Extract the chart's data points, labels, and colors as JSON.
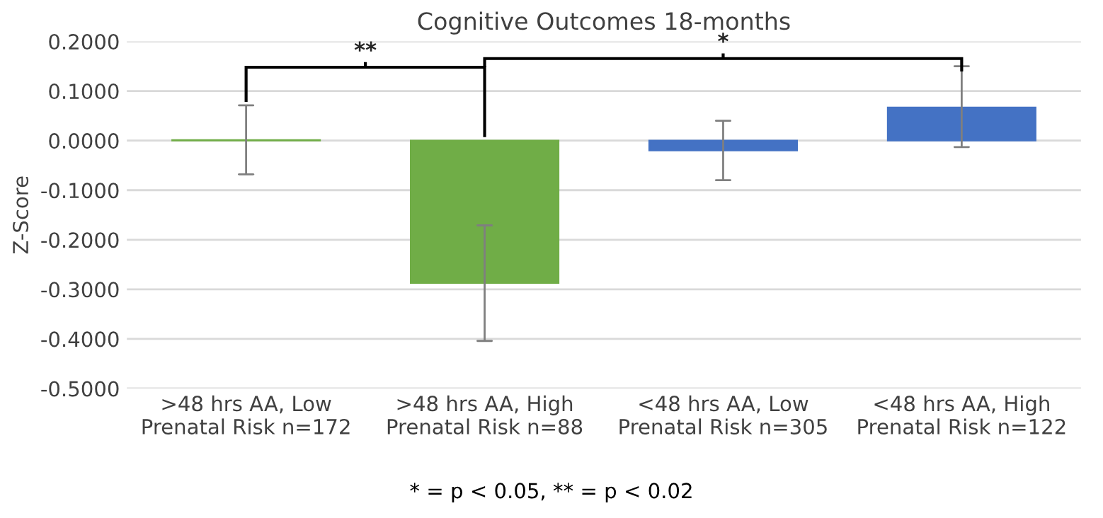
{
  "chart_data": {
    "type": "bar",
    "title": "Cognitive Outcomes 18-months",
    "ylabel": "Z-Score",
    "categories": [
      ">48 hrs AA, Low\nPrenatal Risk n=172",
      ">48 hrs AA, High\nPrenatal Risk n=88",
      "<48 hrs AA, Low\nPrenatal Risk n=305",
      "<48 hrs AA, High\nPrenatal Risk n=122"
    ],
    "values": [
      0.001,
      -0.287,
      -0.02,
      0.067
    ],
    "colors": [
      "#70ad47",
      "#70ad47",
      "#4472c4",
      "#4472c4"
    ],
    "errors": [
      [
        -0.068,
        0.071
      ],
      [
        -0.404,
        -0.171
      ],
      [
        -0.08,
        0.04
      ],
      [
        -0.013,
        0.15
      ]
    ],
    "ylim": [
      -0.5,
      0.2
    ],
    "yticks": [
      {
        "value": -0.5,
        "label": "-0.5000"
      },
      {
        "value": -0.4,
        "label": "-0.4000"
      },
      {
        "value": -0.3,
        "label": "-0.3000"
      },
      {
        "value": -0.2,
        "label": "-0.2000"
      },
      {
        "value": -0.1,
        "label": "-0.1000"
      },
      {
        "value": 0,
        "label": "0.0000"
      },
      {
        "value": 0.1,
        "label": "0.1000"
      },
      {
        "value": 0.2,
        "label": "0.2000"
      }
    ],
    "grid": "y",
    "annotations": [
      "**",
      "*",
      "* = p < 0.05, ** = p < 0.02"
    ]
  }
}
